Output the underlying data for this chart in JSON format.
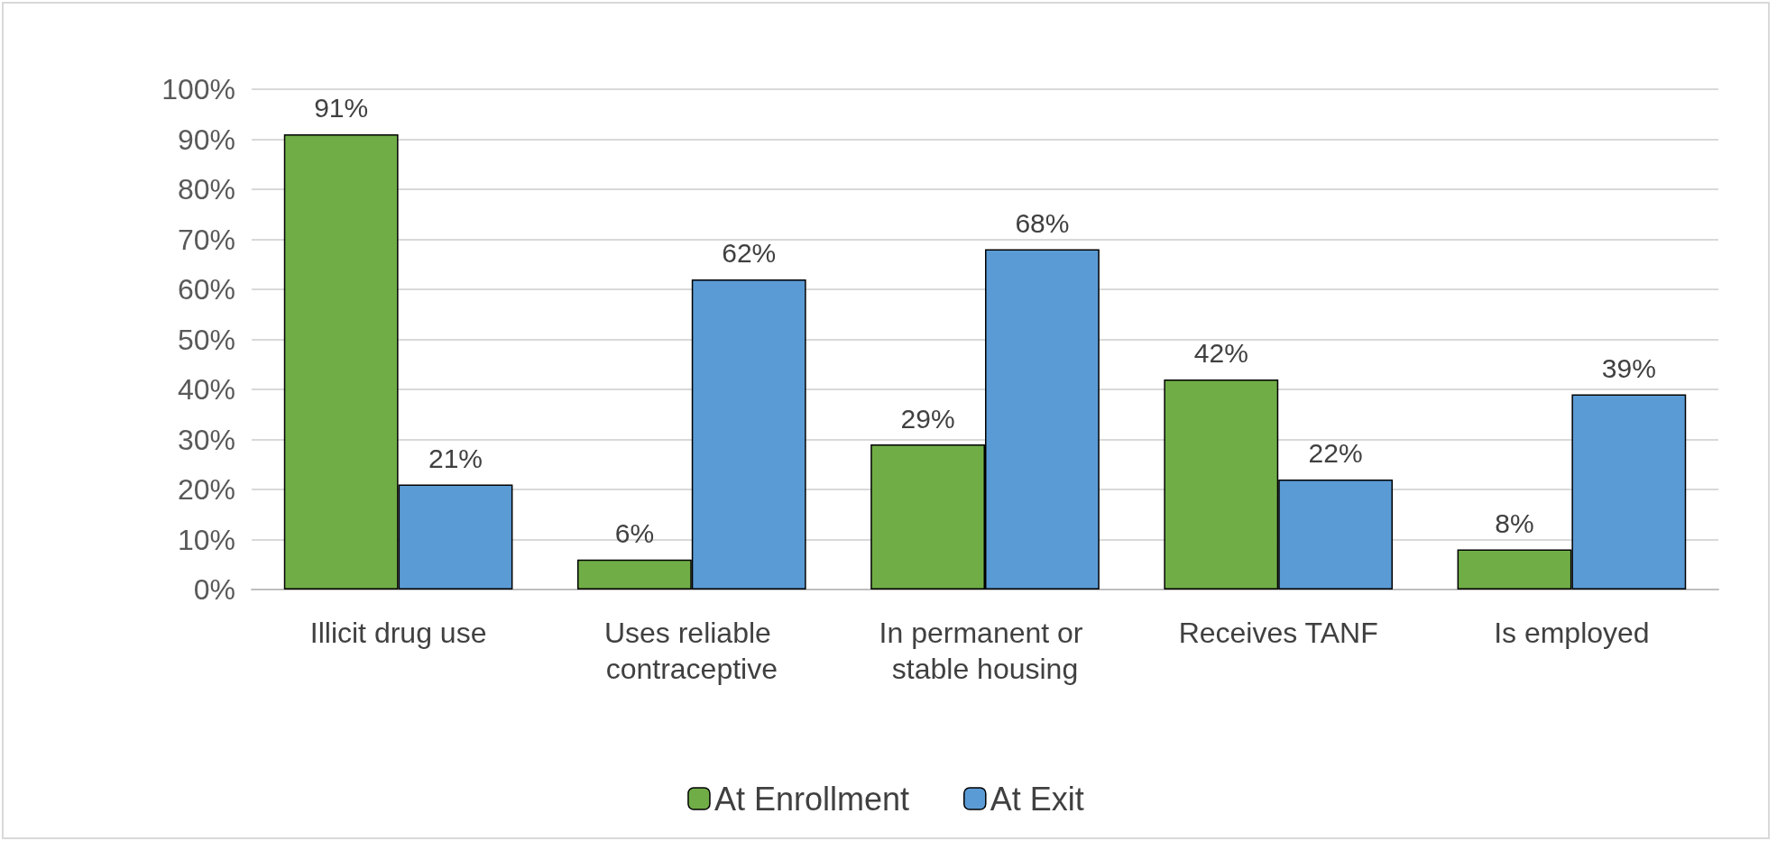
{
  "chart_data": {
    "type": "bar",
    "categories": [
      "Illicit drug use",
      "Uses reliable contraceptive",
      "In permanent or stable housing",
      "Receives TANF",
      "Is employed"
    ],
    "series": [
      {
        "name": "At Enrollment",
        "color": "#70ad47",
        "values": [
          91,
          6,
          29,
          42,
          8
        ],
        "value_labels": [
          "91%",
          "6%",
          "29%",
          "42%",
          "8%"
        ]
      },
      {
        "name": "At Exit",
        "color": "#5b9bd5",
        "values": [
          21,
          62,
          68,
          22,
          39
        ],
        "value_labels": [
          "21%",
          "62%",
          "68%",
          "22%",
          "39%"
        ]
      }
    ],
    "ylim": [
      0,
      100
    ],
    "yticks": [
      {
        "value": 0,
        "label": "0%"
      },
      {
        "value": 10,
        "label": "10%"
      },
      {
        "value": 20,
        "label": "20%"
      },
      {
        "value": 30,
        "label": "30%"
      },
      {
        "value": 40,
        "label": "40%"
      },
      {
        "value": 50,
        "label": "50%"
      },
      {
        "value": 60,
        "label": "60%"
      },
      {
        "value": 70,
        "label": "70%"
      },
      {
        "value": 80,
        "label": "80%"
      },
      {
        "value": 90,
        "label": "90%"
      },
      {
        "value": 100,
        "label": "100%"
      }
    ],
    "grid": "y",
    "legend": "bottom"
  }
}
